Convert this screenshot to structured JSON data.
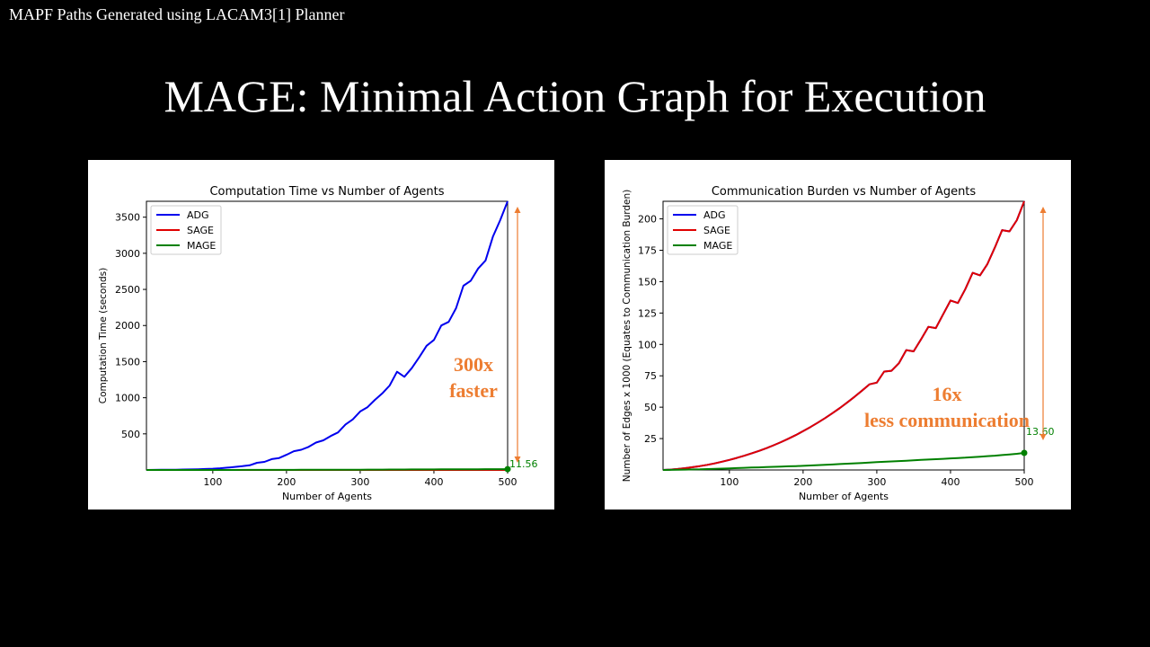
{
  "header": {
    "caption": "MAPF Paths Generated using LACAM3[1] Planner",
    "title": "MAGE: Minimal Action Graph for Execution"
  },
  "colors": {
    "adg": "#0000ee",
    "sage": "#e00000",
    "mage": "#008000",
    "annotation": "#ed7d31"
  },
  "chart_data": [
    {
      "type": "line",
      "title": "Computation Time vs Number of Agents",
      "xlabel": "Number of Agents",
      "ylabel": "Computation Time (seconds)",
      "xlim": [
        10,
        500
      ],
      "ylim": [
        0,
        3720
      ],
      "xticks": [
        100,
        200,
        300,
        400,
        500
      ],
      "yticks": [
        500,
        1000,
        1500,
        2000,
        2500,
        3000,
        3500
      ],
      "grid": false,
      "legend": "top-left",
      "x": [
        10,
        20,
        30,
        40,
        50,
        60,
        70,
        80,
        90,
        100,
        110,
        120,
        130,
        140,
        150,
        160,
        170,
        180,
        190,
        200,
        210,
        220,
        230,
        240,
        250,
        260,
        270,
        280,
        290,
        300,
        310,
        320,
        330,
        340,
        350,
        360,
        370,
        380,
        390,
        400,
        410,
        420,
        430,
        440,
        450,
        460,
        470,
        480,
        490,
        500
      ],
      "series": [
        {
          "name": "ADG",
          "color": "#0000ee",
          "values": [
            0,
            1,
            2,
            3,
            4,
            6,
            8,
            10,
            14,
            18,
            24,
            32,
            42,
            52,
            65,
            100,
            112,
            150,
            165,
            210,
            260,
            280,
            320,
            380,
            410,
            470,
            520,
            630,
            700,
            810,
            870,
            970,
            1060,
            1170,
            1360,
            1290,
            1410,
            1560,
            1720,
            1800,
            2000,
            2050,
            2240,
            2550,
            2620,
            2790,
            2900,
            3230,
            3460,
            3720
          ]
        },
        {
          "name": "SAGE",
          "color": "#e00000",
          "values": [
            0,
            0,
            0,
            0,
            0,
            0,
            0,
            0,
            0,
            0,
            0,
            0,
            0,
            0,
            0,
            0,
            0,
            0,
            0,
            0,
            0,
            0,
            0,
            0,
            0,
            0,
            0,
            0,
            0,
            0,
            0,
            0,
            0,
            0,
            0,
            0,
            0,
            0,
            0,
            0,
            0,
            0,
            0,
            0,
            0,
            0,
            0,
            0,
            0,
            0
          ]
        },
        {
          "name": "MAGE",
          "color": "#008000",
          "values": [
            0,
            0,
            0,
            0,
            0,
            0.1,
            0.1,
            0.2,
            0.2,
            0.3,
            0.4,
            0.5,
            0.6,
            0.7,
            0.8,
            0.9,
            1.0,
            1.2,
            1.4,
            1.6,
            1.8,
            2.0,
            2.2,
            2.5,
            2.8,
            3.0,
            3.3,
            3.6,
            3.9,
            4.2,
            4.5,
            4.9,
            5.3,
            5.7,
            6.1,
            6.5,
            6.9,
            7.3,
            7.6,
            7.9,
            8.2,
            8.6,
            9.0,
            9.4,
            9.8,
            10.2,
            10.6,
            11.0,
            11.3,
            11.56
          ]
        }
      ],
      "end_label": "11.56",
      "annotation": {
        "line1": "300x",
        "line2": "faster"
      }
    },
    {
      "type": "line",
      "title": "Communication Burden vs Number of Agents",
      "xlabel": "Number of Agents",
      "ylabel": "Number of Edges x 1000 (Equates to Communication Burden)",
      "xlim": [
        10,
        500
      ],
      "ylim": [
        0,
        214
      ],
      "xticks": [
        100,
        200,
        300,
        400,
        500
      ],
      "yticks": [
        25,
        50,
        75,
        100,
        125,
        150,
        175,
        200
      ],
      "grid": false,
      "legend": "top-left",
      "x": [
        10,
        20,
        30,
        40,
        50,
        60,
        70,
        80,
        90,
        100,
        110,
        120,
        130,
        140,
        150,
        160,
        170,
        180,
        190,
        200,
        210,
        220,
        230,
        240,
        250,
        260,
        270,
        280,
        290,
        300,
        310,
        320,
        330,
        340,
        350,
        360,
        370,
        380,
        390,
        400,
        410,
        420,
        430,
        440,
        450,
        460,
        470,
        480,
        490,
        500
      ],
      "series": [
        {
          "name": "ADG",
          "color": "#0000ee",
          "values": [
            0,
            0.3,
            0.8,
            1.4,
            2.2,
            3.1,
            4.1,
            5.2,
            6.6,
            8,
            9.6,
            11.3,
            13.2,
            15.2,
            17.3,
            19.7,
            22.2,
            24.9,
            27.8,
            30.9,
            34.2,
            37.7,
            41.4,
            45.3,
            49.4,
            53.8,
            58.4,
            63.2,
            68.2,
            69.6,
            78.4,
            79,
            85,
            95.5,
            94.5,
            104,
            114,
            113,
            124,
            135,
            133,
            144,
            157,
            155,
            164,
            177,
            191,
            190,
            199,
            214
          ]
        },
        {
          "name": "SAGE",
          "color": "#e00000",
          "values": [
            0,
            0.3,
            0.8,
            1.4,
            2.2,
            3.1,
            4.1,
            5.2,
            6.6,
            8,
            9.6,
            11.3,
            13.2,
            15.2,
            17.3,
            19.7,
            22.2,
            24.9,
            27.8,
            30.9,
            34.2,
            37.7,
            41.4,
            45.3,
            49.4,
            53.8,
            58.4,
            63.2,
            68.2,
            69.6,
            78.4,
            79,
            85,
            95.5,
            94.5,
            104,
            114,
            113,
            124,
            135,
            133,
            144,
            157,
            155,
            164,
            177,
            191,
            190,
            199,
            214
          ]
        },
        {
          "name": "MAGE",
          "color": "#008000",
          "values": [
            0,
            0.1,
            0.2,
            0.3,
            0.4,
            0.5,
            0.7,
            0.9,
            1.1,
            1.3,
            1.5,
            1.7,
            1.9,
            2.1,
            2.3,
            2.5,
            2.7,
            2.9,
            3.1,
            3.3,
            3.6,
            3.9,
            4.1,
            4.4,
            4.7,
            5.0,
            5.3,
            5.6,
            5.9,
            6.2,
            6.5,
            6.8,
            7.1,
            7.4,
            7.7,
            8.0,
            8.3,
            8.6,
            8.9,
            9.2,
            9.5,
            9.8,
            10.2,
            10.6,
            11.0,
            11.4,
            11.9,
            12.4,
            12.9,
            13.6
          ]
        }
      ],
      "end_label": "13.60",
      "annotation": {
        "line1": "16x",
        "line2": "less communication"
      }
    }
  ]
}
